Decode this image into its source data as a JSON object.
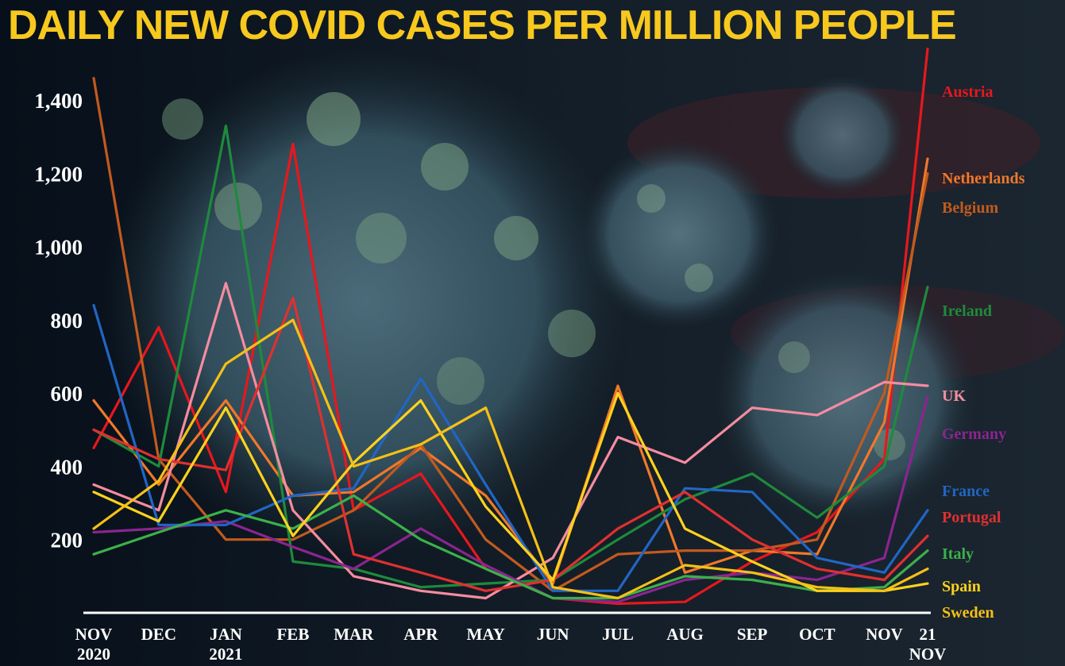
{
  "chart_data": {
    "type": "line",
    "title": "DAILY NEW COVID CASES PER MILLION PEOPLE",
    "ylabel": "",
    "xlabel": "",
    "ylim": [
      0,
      1550
    ],
    "yticks": [
      "200",
      "400",
      "600",
      "800",
      "1,000",
      "1,200",
      "1,400"
    ],
    "ytick_values": [
      200,
      400,
      600,
      800,
      1000,
      1200,
      1400
    ],
    "xticks": [
      {
        "l1": "NOV",
        "l2": "2020"
      },
      {
        "l1": "DEC",
        "l2": ""
      },
      {
        "l1": "JAN",
        "l2": "2021"
      },
      {
        "l1": "FEB",
        "l2": ""
      },
      {
        "l1": "MAR",
        "l2": ""
      },
      {
        "l1": "APR",
        "l2": ""
      },
      {
        "l1": "MAY",
        "l2": ""
      },
      {
        "l1": "JUN",
        "l2": ""
      },
      {
        "l1": "JUL",
        "l2": ""
      },
      {
        "l1": "AUG",
        "l2": ""
      },
      {
        "l1": "SEP",
        "l2": ""
      },
      {
        "l1": "OCT",
        "l2": ""
      },
      {
        "l1": "NOV",
        "l2": ""
      },
      {
        "l1": "21",
        "l2": "NOV"
      }
    ],
    "x": [
      "2020-11-01",
      "2020-12-01",
      "2021-01-01",
      "2021-02-01",
      "2021-03-01",
      "2021-04-01",
      "2021-05-01",
      "2021-06-01",
      "2021-07-01",
      "2021-08-01",
      "2021-09-01",
      "2021-10-01",
      "2021-11-01",
      "2021-11-21"
    ],
    "legend_placement": "right",
    "grid": false,
    "series": [
      {
        "name": "Austria",
        "color": "#e8171d",
        "values": [
          450,
          780,
          330,
          1280,
          280,
          380,
          120,
          40,
          25,
          30,
          140,
          220,
          420,
          1540
        ]
      },
      {
        "name": "Netherlands",
        "color": "#f0782a",
        "values": [
          580,
          350,
          580,
          320,
          330,
          450,
          320,
          80,
          620,
          110,
          170,
          160,
          520,
          1240
        ]
      },
      {
        "name": "Belgium",
        "color": "#c25a1e",
        "values": [
          1460,
          420,
          200,
          200,
          280,
          460,
          200,
          60,
          160,
          170,
          170,
          200,
          600,
          1200
        ]
      },
      {
        "name": "Ireland",
        "color": "#1e8a3c",
        "values": [
          500,
          400,
          1330,
          140,
          120,
          70,
          80,
          90,
          200,
          310,
          380,
          260,
          400,
          890
        ]
      },
      {
        "name": "UK",
        "color": "#f48ca0",
        "values": [
          350,
          280,
          900,
          280,
          100,
          60,
          40,
          150,
          480,
          410,
          560,
          540,
          630,
          620
        ]
      },
      {
        "name": "Germany",
        "color": "#8a2590",
        "values": [
          220,
          230,
          250,
          180,
          120,
          230,
          130,
          40,
          30,
          90,
          110,
          90,
          150,
          590
        ]
      },
      {
        "name": "France",
        "color": "#2166c4",
        "values": [
          840,
          240,
          240,
          320,
          340,
          640,
          350,
          60,
          60,
          340,
          330,
          150,
          110,
          280
        ]
      },
      {
        "name": "Portugal",
        "color": "#e03030",
        "values": [
          500,
          420,
          390,
          860,
          160,
          110,
          60,
          90,
          230,
          330,
          200,
          120,
          90,
          210
        ]
      },
      {
        "name": "Italy",
        "color": "#3cb04a",
        "values": [
          160,
          220,
          280,
          230,
          320,
          200,
          120,
          40,
          40,
          100,
          90,
          60,
          70,
          170
        ]
      },
      {
        "name": "Spain",
        "color": "#ffd21e",
        "values": [
          330,
          250,
          560,
          210,
          410,
          580,
          290,
          90,
          600,
          230,
          140,
          60,
          60,
          80
        ]
      },
      {
        "name": "Sweden",
        "color": "#f5c016",
        "values": [
          230,
          360,
          680,
          800,
          400,
          460,
          560,
          70,
          40,
          130,
          110,
          70,
          60,
          120
        ]
      }
    ]
  }
}
